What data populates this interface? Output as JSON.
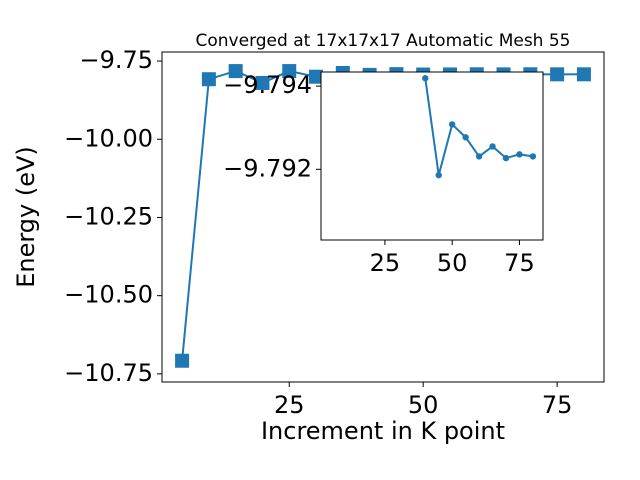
{
  "chart_data": [
    {
      "type": "line",
      "title": "Converged at 17x17x17 Automatic Mesh 55",
      "x_label": "Increment in K point",
      "y_label": "Energy (eV)",
      "x": [
        5,
        10,
        15,
        20,
        25,
        30,
        35,
        40,
        45,
        50,
        55,
        60,
        65,
        70,
        75,
        80
      ],
      "series": [
        {
          "color": "#1f77b4",
          "marker": "square",
          "values": [
            -10.708,
            -9.808,
            -9.782,
            -9.82,
            -9.782,
            -9.8,
            -9.788,
            -9.79419,
            -9.79186,
            -9.79308,
            -9.79277,
            -9.79231,
            -9.79255,
            -9.79227,
            -9.79236,
            -9.79231
          ]
        }
      ],
      "xlim": [
        1.25,
        83.75
      ],
      "ylim": [
        -10.776,
        -9.721
      ],
      "xticks": [
        25,
        50,
        75
      ],
      "yticks": [
        {
          "value": -9.75,
          "label": "−9.75"
        },
        {
          "value": -10.0,
          "label": "−10.00"
        },
        {
          "value": -10.25,
          "label": "−10.25"
        },
        {
          "value": -10.5,
          "label": "−10.50"
        },
        {
          "value": -10.75,
          "label": "−10.75"
        }
      ]
    },
    {
      "type": "line",
      "x": [
        40,
        45,
        50,
        55,
        60,
        65,
        70,
        75,
        80
      ],
      "series": [
        {
          "color": "#1f77b4",
          "marker": "circle",
          "values": [
            -9.79419,
            -9.79186,
            -9.79308,
            -9.79277,
            -9.79231,
            -9.79255,
            -9.79227,
            -9.79236,
            -9.79231
          ]
        }
      ],
      "xlim": [
        1.25,
        83.75
      ],
      "ylim": [
        -9.7903,
        -9.79434
      ],
      "xticks": [
        25,
        50,
        75
      ],
      "yticks": [
        {
          "value": -9.794,
          "label": "−9.794"
        },
        {
          "value": -9.792,
          "label": "−9.792"
        }
      ]
    }
  ]
}
